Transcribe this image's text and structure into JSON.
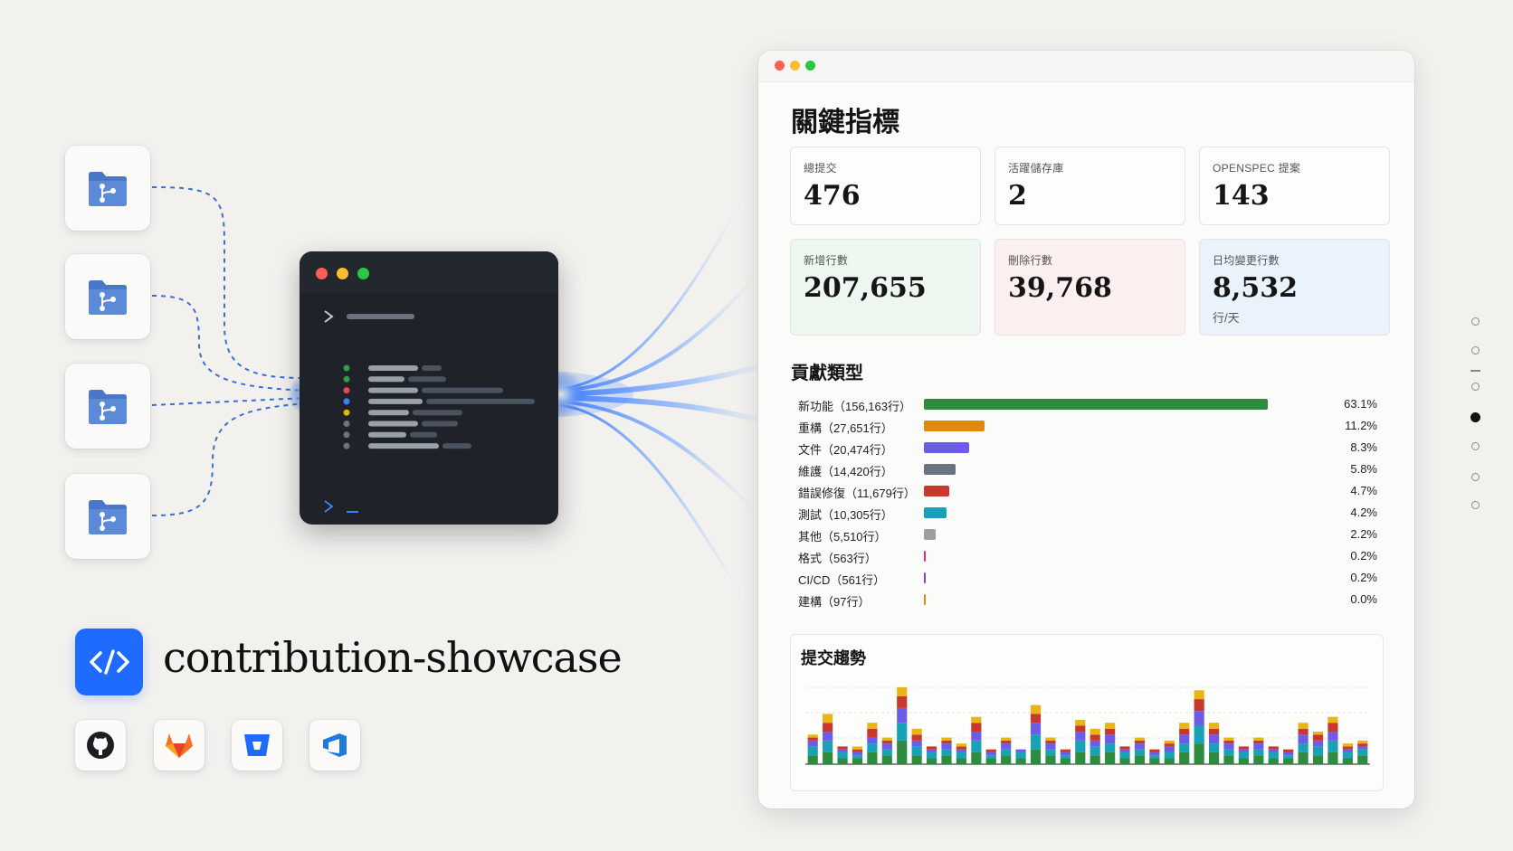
{
  "project": {
    "name": "contribution-showcase",
    "logo_icon": "code-brackets-icon"
  },
  "repos": [
    {
      "icon": "git-folder-icon"
    },
    {
      "icon": "git-folder-icon"
    },
    {
      "icon": "git-folder-icon"
    },
    {
      "icon": "git-folder-icon"
    }
  ],
  "hosts": [
    {
      "name": "github",
      "icon": "github-icon"
    },
    {
      "name": "gitlab",
      "icon": "gitlab-icon"
    },
    {
      "name": "bitbucket",
      "icon": "bitbucket-icon"
    },
    {
      "name": "azure-devops",
      "icon": "azure-devops-icon"
    }
  ],
  "terminal": {
    "log_dots": [
      "#2ea043",
      "#2ea043",
      "#e5484d",
      "#3b82f6",
      "#eab308",
      "#6b7280",
      "#6b7280",
      "#6b7280"
    ]
  },
  "dashboard": {
    "title": "關鍵指標",
    "metrics": [
      {
        "label": "總提交",
        "value": "476",
        "bg": "#fdfdfc"
      },
      {
        "label": "活躍儲存庫",
        "value": "2",
        "bg": "#fdfdfc"
      },
      {
        "label": "OPENSPEC 提案",
        "value": "143",
        "bg": "#fdfdfc"
      },
      {
        "label": "新增行數",
        "value": "207,655",
        "bg": "#eef7ef"
      },
      {
        "label": "刪除行數",
        "value": "39,768",
        "bg": "#fcefef"
      },
      {
        "label": "日均變更行數",
        "value": "8,532",
        "sub": "行/天",
        "bg": "#eaf2fb"
      }
    ],
    "contribution_title": "貢獻類型",
    "contribution_types": [
      {
        "label": "新功能（156,163行）",
        "percent": 63.1,
        "pct_text": "63.1%",
        "color": "#2e8b3f"
      },
      {
        "label": "重構（27,651行）",
        "percent": 11.2,
        "pct_text": "11.2%",
        "color": "#e08a0b"
      },
      {
        "label": "文件（20,474行）",
        "percent": 8.3,
        "pct_text": "8.3%",
        "color": "#6c5ce7"
      },
      {
        "label": "維護（14,420行）",
        "percent": 5.8,
        "pct_text": "5.8%",
        "color": "#6b7280"
      },
      {
        "label": "錯誤修復（11,679行）",
        "percent": 4.7,
        "pct_text": "4.7%",
        "color": "#c9382f"
      },
      {
        "label": "測試（10,305行）",
        "percent": 4.2,
        "pct_text": "4.2%",
        "color": "#17a2b8"
      },
      {
        "label": "其他（5,510行）",
        "percent": 2.2,
        "pct_text": "2.2%",
        "color": "#9e9e9e"
      },
      {
        "label": "格式（563行）",
        "percent": 0.2,
        "pct_text": "0.2%",
        "color": "#d63384"
      },
      {
        "label": "CI/CD（561行）",
        "percent": 0.2,
        "pct_text": "0.2%",
        "color": "#8e44ad"
      },
      {
        "label": "建構（97行）",
        "percent": 0.0,
        "pct_text": "0.0%",
        "color": "#e08a0b"
      }
    ],
    "trend": {
      "title": "提交趨勢",
      "chart_data": {
        "type": "bar",
        "stacked": true,
        "series_colors": [
          "#2e8b3f",
          "#17a2b8",
          "#6c5ce7",
          "#c9382f",
          "#e8b417"
        ],
        "columns": [
          [
            3,
            3,
            2,
            1,
            1
          ],
          [
            4,
            4,
            3,
            3,
            3
          ],
          [
            2,
            2,
            1,
            1,
            0
          ],
          [
            2,
            1,
            1,
            1,
            1
          ],
          [
            4,
            3,
            2,
            3,
            2
          ],
          [
            3,
            2,
            2,
            1,
            1
          ],
          [
            8,
            6,
            5,
            4,
            3
          ],
          [
            3,
            3,
            2,
            2,
            2
          ],
          [
            2,
            2,
            1,
            1,
            0
          ],
          [
            3,
            2,
            2,
            1,
            1
          ],
          [
            2,
            2,
            1,
            1,
            1
          ],
          [
            4,
            4,
            3,
            3,
            2
          ],
          [
            2,
            1,
            1,
            1,
            0
          ],
          [
            3,
            2,
            2,
            1,
            1
          ],
          [
            2,
            2,
            1,
            0,
            0
          ],
          [
            5,
            5,
            4,
            3,
            3
          ],
          [
            3,
            2,
            2,
            1,
            1
          ],
          [
            2,
            1,
            1,
            1,
            0
          ],
          [
            4,
            4,
            3,
            2,
            2
          ],
          [
            3,
            3,
            2,
            2,
            2
          ],
          [
            4,
            3,
            3,
            2,
            2
          ],
          [
            2,
            2,
            1,
            1,
            0
          ],
          [
            3,
            2,
            2,
            1,
            1
          ],
          [
            2,
            1,
            1,
            1,
            0
          ],
          [
            2,
            2,
            2,
            1,
            1
          ],
          [
            4,
            3,
            3,
            2,
            2
          ],
          [
            7,
            6,
            5,
            4,
            3
          ],
          [
            4,
            3,
            3,
            2,
            2
          ],
          [
            3,
            2,
            2,
            1,
            1
          ],
          [
            2,
            2,
            1,
            1,
            0
          ],
          [
            3,
            2,
            2,
            1,
            1
          ],
          [
            2,
            2,
            1,
            1,
            0
          ],
          [
            2,
            1,
            1,
            1,
            0
          ],
          [
            4,
            3,
            3,
            2,
            2
          ],
          [
            3,
            3,
            2,
            2,
            1
          ],
          [
            4,
            4,
            3,
            3,
            2
          ],
          [
            2,
            2,
            1,
            1,
            1
          ],
          [
            3,
            2,
            1,
            1,
            1
          ]
        ]
      }
    }
  },
  "pager": {
    "count": 7,
    "active_index": 3
  }
}
